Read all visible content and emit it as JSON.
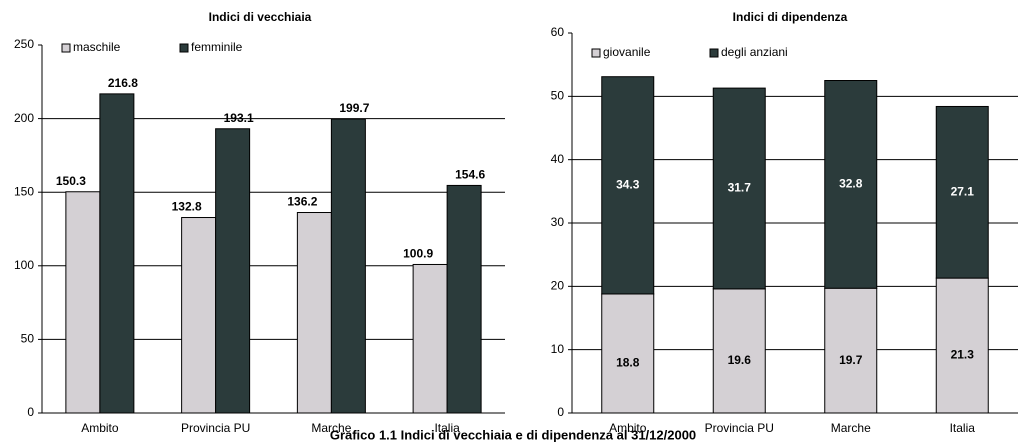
{
  "chart_data": [
    {
      "type": "bar",
      "title": "Indici di vecchiaia",
      "categories": [
        "Ambito",
        "Provincia PU",
        "Marche",
        "Italia"
      ],
      "series": [
        {
          "name": "maschile",
          "color": "#d4d0d4",
          "values": [
            150.3,
            132.8,
            136.2,
            100.9
          ]
        },
        {
          "name": "femminile",
          "color": "#2b3b3b",
          "values": [
            216.8,
            193.1,
            199.7,
            154.6
          ]
        }
      ],
      "ylim": [
        0,
        250
      ],
      "yticks": [
        0,
        50,
        100,
        150,
        200,
        250
      ],
      "grid": true,
      "legend": "top-left"
    },
    {
      "type": "stacked_bar",
      "title": "Indici di dipendenza",
      "categories": [
        "Ambito",
        "Provincia PU",
        "Marche",
        "Italia"
      ],
      "series": [
        {
          "name": "giovanile",
          "color": "#d4d0d4",
          "values": [
            18.8,
            19.6,
            19.7,
            21.3
          ]
        },
        {
          "name": "degli anziani",
          "color": "#2b3b3b",
          "values": [
            34.3,
            31.7,
            32.8,
            27.1
          ]
        }
      ],
      "ylim": [
        0,
        60
      ],
      "yticks": [
        0,
        10,
        20,
        30,
        40,
        50,
        60
      ],
      "grid": true,
      "legend": "top-left"
    }
  ],
  "caption": "Grafico 1.1 Indici di vecchiaia e di dipendenza al 31/12/2000"
}
